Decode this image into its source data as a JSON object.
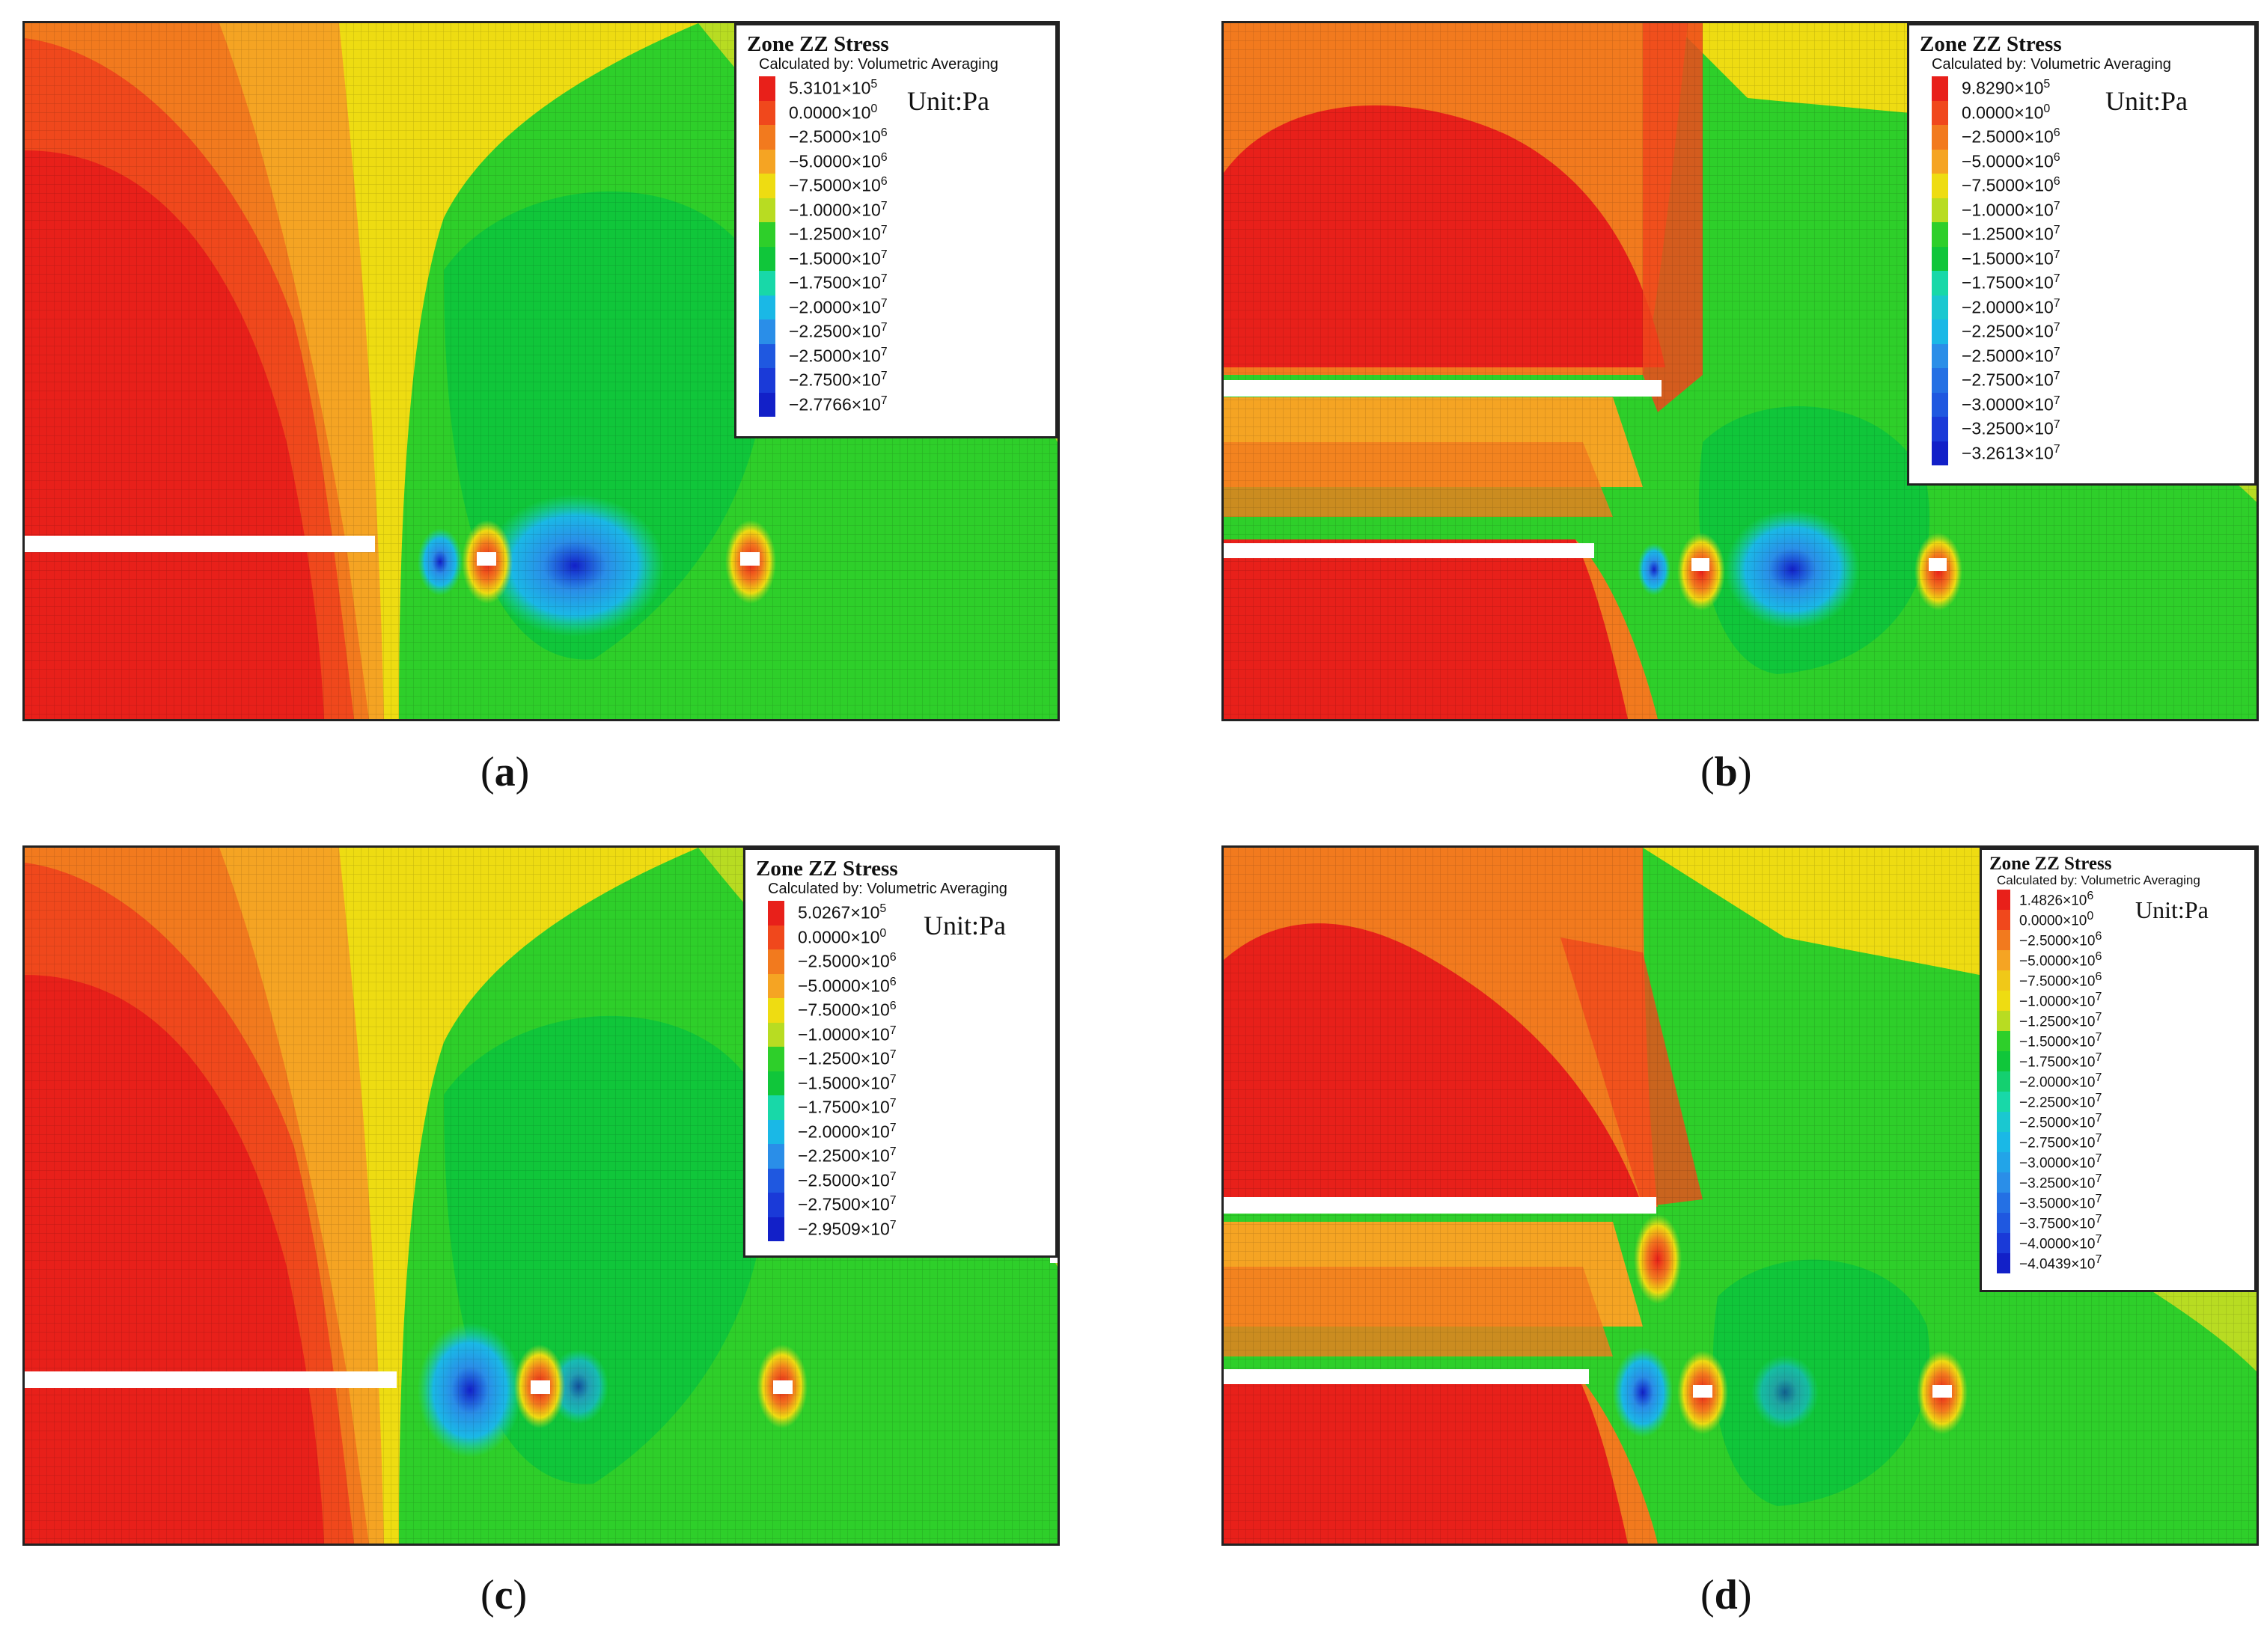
{
  "colors": {
    "red": "#e8201a",
    "red_orange": "#f0481c",
    "orange": "#f27a1e",
    "orange_light": "#f5a423",
    "yellow": "#eedc12",
    "yellow_green": "#b8dc22",
    "green": "#2ecf2a",
    "green_mid": "#10c63a",
    "teal": "#18d8a8",
    "cyan": "#1ab8e6",
    "blue_light": "#2a8ee8",
    "blue": "#1f58e0",
    "blue_dark": "#1220c8"
  },
  "panels": [
    {
      "id": "a",
      "caption": "a",
      "legend": {
        "title": "Zone ZZ Stress",
        "subtitle": "Calculated by: Volumetric Averaging",
        "unit": "Unit:Pa",
        "entries": [
          {
            "m": "5.3101×10",
            "e": "5",
            "color": "#e8201a"
          },
          {
            "m": "0.0000×10",
            "e": "0",
            "color": "#f0481c"
          },
          {
            "m": "−2.5000×10",
            "e": "6",
            "color": "#f27a1e"
          },
          {
            "m": "−5.0000×10",
            "e": "6",
            "color": "#f5a423"
          },
          {
            "m": "−7.5000×10",
            "e": "6",
            "color": "#eedc12"
          },
          {
            "m": "−1.0000×10",
            "e": "7",
            "color": "#b8dc22"
          },
          {
            "m": "−1.2500×10",
            "e": "7",
            "color": "#2ecf2a"
          },
          {
            "m": "−1.5000×10",
            "e": "7",
            "color": "#10c63a"
          },
          {
            "m": "−1.7500×10",
            "e": "7",
            "color": "#18d8a8"
          },
          {
            "m": "−2.0000×10",
            "e": "7",
            "color": "#1ab8e6"
          },
          {
            "m": "−2.2500×10",
            "e": "7",
            "color": "#2a8ee8"
          },
          {
            "m": "−2.5000×10",
            "e": "7",
            "color": "#1f58e0"
          },
          {
            "m": "−2.7500×10",
            "e": "7",
            "color": "#1a3ad8"
          },
          {
            "m": "−2.7766×10",
            "e": "7",
            "color": "#1220c8"
          }
        ]
      }
    },
    {
      "id": "b",
      "caption": "b",
      "legend": {
        "title": "Zone ZZ Stress",
        "subtitle": "Calculated by: Volumetric Averaging",
        "unit": "Unit:Pa",
        "entries": [
          {
            "m": "9.8290×10",
            "e": "5",
            "color": "#e8201a"
          },
          {
            "m": "0.0000×10",
            "e": "0",
            "color": "#f0481c"
          },
          {
            "m": "−2.5000×10",
            "e": "6",
            "color": "#f27a1e"
          },
          {
            "m": "−5.0000×10",
            "e": "6",
            "color": "#f5a423"
          },
          {
            "m": "−7.5000×10",
            "e": "6",
            "color": "#eedc12"
          },
          {
            "m": "−1.0000×10",
            "e": "7",
            "color": "#b8dc22"
          },
          {
            "m": "−1.2500×10",
            "e": "7",
            "color": "#2ecf2a"
          },
          {
            "m": "−1.5000×10",
            "e": "7",
            "color": "#10c63a"
          },
          {
            "m": "−1.7500×10",
            "e": "7",
            "color": "#18d8a8"
          },
          {
            "m": "−2.0000×10",
            "e": "7",
            "color": "#1ac8d0"
          },
          {
            "m": "−2.2500×10",
            "e": "7",
            "color": "#1ab8e6"
          },
          {
            "m": "−2.5000×10",
            "e": "7",
            "color": "#2a8ee8"
          },
          {
            "m": "−2.7500×10",
            "e": "7",
            "color": "#2470e4"
          },
          {
            "m": "−3.0000×10",
            "e": "7",
            "color": "#1f58e0"
          },
          {
            "m": "−3.2500×10",
            "e": "7",
            "color": "#1a3ad8"
          },
          {
            "m": "−3.2613×10",
            "e": "7",
            "color": "#1220c8"
          }
        ]
      }
    },
    {
      "id": "c",
      "caption": "c",
      "legend": {
        "title": "Zone ZZ Stress",
        "subtitle": "Calculated by: Volumetric Averaging",
        "unit": "Unit:Pa",
        "entries": [
          {
            "m": "5.0267×10",
            "e": "5",
            "color": "#e8201a"
          },
          {
            "m": "0.0000×10",
            "e": "0",
            "color": "#f0481c"
          },
          {
            "m": "−2.5000×10",
            "e": "6",
            "color": "#f27a1e"
          },
          {
            "m": "−5.0000×10",
            "e": "6",
            "color": "#f5a423"
          },
          {
            "m": "−7.5000×10",
            "e": "6",
            "color": "#eedc12"
          },
          {
            "m": "−1.0000×10",
            "e": "7",
            "color": "#b8dc22"
          },
          {
            "m": "−1.2500×10",
            "e": "7",
            "color": "#2ecf2a"
          },
          {
            "m": "−1.5000×10",
            "e": "7",
            "color": "#10c63a"
          },
          {
            "m": "−1.7500×10",
            "e": "7",
            "color": "#18d8a8"
          },
          {
            "m": "−2.0000×10",
            "e": "7",
            "color": "#1ab8e6"
          },
          {
            "m": "−2.2500×10",
            "e": "7",
            "color": "#2a8ee8"
          },
          {
            "m": "−2.5000×10",
            "e": "7",
            "color": "#1f58e0"
          },
          {
            "m": "−2.7500×10",
            "e": "7",
            "color": "#1a3ad8"
          },
          {
            "m": "−2.9509×10",
            "e": "7",
            "color": "#1220c8"
          }
        ]
      }
    },
    {
      "id": "d",
      "caption": "d",
      "legend": {
        "title": "Zone ZZ Stress",
        "subtitle": "Calculated by: Volumetric Averaging",
        "unit": "Unit:Pa",
        "entries": [
          {
            "m": "1.4826×10",
            "e": "6",
            "color": "#e8201a"
          },
          {
            "m": "0.0000×10",
            "e": "0",
            "color": "#f0481c"
          },
          {
            "m": "−2.5000×10",
            "e": "6",
            "color": "#f27a1e"
          },
          {
            "m": "−5.0000×10",
            "e": "6",
            "color": "#f5a423"
          },
          {
            "m": "−7.5000×10",
            "e": "6",
            "color": "#f0c818"
          },
          {
            "m": "−1.0000×10",
            "e": "7",
            "color": "#eedc12"
          },
          {
            "m": "−1.2500×10",
            "e": "7",
            "color": "#b8dc22"
          },
          {
            "m": "−1.5000×10",
            "e": "7",
            "color": "#2ecf2a"
          },
          {
            "m": "−1.7500×10",
            "e": "7",
            "color": "#10c63a"
          },
          {
            "m": "−2.0000×10",
            "e": "7",
            "color": "#14d070"
          },
          {
            "m": "−2.2500×10",
            "e": "7",
            "color": "#18d8a8"
          },
          {
            "m": "−2.5000×10",
            "e": "7",
            "color": "#1ac8d0"
          },
          {
            "m": "−2.7500×10",
            "e": "7",
            "color": "#1ab8e6"
          },
          {
            "m": "−3.0000×10",
            "e": "7",
            "color": "#22a4e8"
          },
          {
            "m": "−3.2500×10",
            "e": "7",
            "color": "#2a8ee8"
          },
          {
            "m": "−3.5000×10",
            "e": "7",
            "color": "#2470e4"
          },
          {
            "m": "−3.7500×10",
            "e": "7",
            "color": "#1f58e0"
          },
          {
            "m": "−4.0000×10",
            "e": "7",
            "color": "#1a3ad8"
          },
          {
            "m": "−4.0439×10",
            "e": "7",
            "color": "#1220c8"
          }
        ]
      }
    }
  ]
}
